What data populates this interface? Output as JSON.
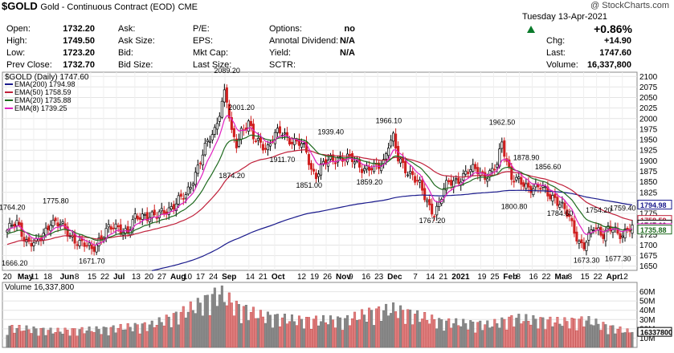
{
  "header": {
    "symbol": "$GOLD",
    "description": "Gold - Continuous Contract (EOD)",
    "exchange": "CME",
    "copyright": "@ StockCharts.com",
    "date": "Tuesday  13-Apr-2021",
    "pct_change": "+0.86%",
    "chg_label": "Chg:",
    "chg_value": "+14.90",
    "last_label": "Last:",
    "last_value": "1747.60",
    "volume_label": "Volume:",
    "volume_value": "16,337,800",
    "up_color": "#0a7a2a",
    "stats": [
      {
        "label": "Open:",
        "value": "1732.20"
      },
      {
        "label": "High:",
        "value": "1749.50"
      },
      {
        "label": "Low:",
        "value": "1723.20"
      },
      {
        "label": "Prev Close:",
        "value": "1732.70"
      }
    ],
    "stats2": [
      {
        "label": "Ask:",
        "value": ""
      },
      {
        "label": "Ask Size:",
        "value": ""
      },
      {
        "label": "Bid:",
        "value": ""
      },
      {
        "label": "Bid Size:",
        "value": ""
      }
    ],
    "stats3": [
      {
        "label": "P/E:",
        "value": ""
      },
      {
        "label": "EPS:",
        "value": ""
      },
      {
        "label": "Mkt Cap:",
        "value": ""
      },
      {
        "label": "Last Size:",
        "value": ""
      }
    ],
    "stats4": [
      {
        "label": "Options:",
        "value": "no"
      },
      {
        "label": "Annotal Dividend:",
        "value": "N/A"
      },
      {
        "label": "Yield:",
        "value": "N/A"
      },
      {
        "label": "SCTR:",
        "value": ""
      }
    ]
  },
  "chart_data": {
    "type": "candlestick",
    "legend_title": "$GOLD (Daily) 1747.60",
    "legend": [
      {
        "name": "EMA(200) 1794.98",
        "color": "#1a1a8c"
      },
      {
        "name": "EMA(50) 1758.59",
        "color": "#c0203a"
      },
      {
        "name": "EMA(20) 1735.88",
        "color": "#1e6a1e"
      },
      {
        "name": "EMA(8) 1739.25",
        "color": "#e020c0"
      }
    ],
    "ylim": [
      1640,
      2110
    ],
    "yticks": [
      1650,
      1675,
      1700,
      1725,
      1750,
      1775,
      1800,
      1825,
      1850,
      1875,
      1900,
      1925,
      1950,
      1975,
      2000,
      2025,
      2050,
      2075,
      2100
    ],
    "xticks": [
      "20",
      "May",
      "11",
      "18",
      "Jun",
      "8",
      "15",
      "22",
      "Jul",
      "13",
      "20",
      "27",
      "Aug",
      "10",
      "17",
      "24",
      "Sep",
      "14",
      "21",
      "Oct",
      "12",
      "19",
      "26",
      "Nov",
      "9",
      "16",
      "23",
      "Dec",
      "7",
      "14",
      "21",
      "2021",
      "19",
      "25",
      "Feb",
      "8",
      "16",
      "22",
      "Mar",
      "8",
      "15",
      "22",
      "Apr",
      "12"
    ],
    "annotations": [
      {
        "label": "1764.20",
        "value": 1764.2
      },
      {
        "label": "1775.80",
        "value": 1775.8
      },
      {
        "label": "1666.20",
        "value": 1666.2
      },
      {
        "label": "1671.70",
        "value": 1671.7
      },
      {
        "label": "2089.20",
        "value": 2089.2
      },
      {
        "label": "2001.20",
        "value": 2001.2
      },
      {
        "label": "1874.20",
        "value": 1874.2
      },
      {
        "label": "1911.70",
        "value": 1911.7
      },
      {
        "label": "1851.00",
        "value": 1851.0
      },
      {
        "label": "1939.40",
        "value": 1939.4
      },
      {
        "label": "1859.20",
        "value": 1859.2
      },
      {
        "label": "1966.10",
        "value": 1966.1
      },
      {
        "label": "1767.20",
        "value": 1767.2
      },
      {
        "label": "1962.50",
        "value": 1962.5
      },
      {
        "label": "1800.80",
        "value": 1800.8
      },
      {
        "label": "1878.90",
        "value": 1878.9
      },
      {
        "label": "1856.60",
        "value": 1856.6
      },
      {
        "label": "1784.60",
        "value": 1784.6
      },
      {
        "label": "1754.20",
        "value": 1754.2
      },
      {
        "label": "1759.40",
        "value": 1759.4
      },
      {
        "label": "1673.30",
        "value": 1673.3
      },
      {
        "label": "1677.30",
        "value": 1677.3
      }
    ],
    "right_tags": [
      {
        "label": "1794.98",
        "value": 1794.98,
        "color": "#1a1a8c"
      },
      {
        "label": "1758.59",
        "value": 1758.59,
        "color": "#c0203a"
      },
      {
        "label": "1747.60",
        "value": 1747.6,
        "color": "#000000"
      },
      {
        "label": "1739.25",
        "value": 1739.25,
        "color": "#e020c0"
      },
      {
        "label": "1735.88",
        "value": 1735.88,
        "color": "#1e6a1e"
      }
    ],
    "close_anchors": [
      [
        0,
        1735
      ],
      [
        4,
        1750
      ],
      [
        8,
        1712
      ],
      [
        12,
        1700
      ],
      [
        15,
        1725
      ],
      [
        18,
        1760
      ],
      [
        22,
        1745
      ],
      [
        27,
        1720
      ],
      [
        31,
        1700
      ],
      [
        35,
        1690
      ],
      [
        38,
        1715
      ],
      [
        42,
        1735
      ],
      [
        46,
        1745
      ],
      [
        50,
        1730
      ],
      [
        53,
        1760
      ],
      [
        57,
        1775
      ],
      [
        62,
        1765
      ],
      [
        66,
        1785
      ],
      [
        70,
        1800
      ],
      [
        74,
        1815
      ],
      [
        77,
        1860
      ],
      [
        80,
        1900
      ],
      [
        83,
        1940
      ],
      [
        86,
        1975
      ],
      [
        88,
        2020
      ],
      [
        90,
        2060
      ],
      [
        91,
        2040
      ],
      [
        93,
        1960
      ],
      [
        95,
        1940
      ],
      [
        97,
        1975
      ],
      [
        100,
        1990
      ],
      [
        102,
        1950
      ],
      [
        105,
        1940
      ],
      [
        108,
        1935
      ],
      [
        111,
        1960
      ],
      [
        114,
        1965
      ],
      [
        118,
        1950
      ],
      [
        121,
        1940
      ],
      [
        124,
        1920
      ],
      [
        126,
        1880
      ],
      [
        128,
        1870
      ],
      [
        131,
        1890
      ],
      [
        134,
        1900
      ],
      [
        137,
        1910
      ],
      [
        140,
        1905
      ],
      [
        143,
        1900
      ],
      [
        146,
        1890
      ],
      [
        150,
        1880
      ],
      [
        153,
        1880
      ],
      [
        156,
        1900
      ],
      [
        158,
        1945
      ],
      [
        160,
        1955
      ],
      [
        162,
        1900
      ],
      [
        165,
        1880
      ],
      [
        168,
        1870
      ],
      [
        171,
        1840
      ],
      [
        173,
        1810
      ],
      [
        175,
        1790
      ],
      [
        177,
        1780
      ],
      [
        179,
        1800
      ],
      [
        181,
        1830
      ],
      [
        183,
        1845
      ],
      [
        186,
        1855
      ],
      [
        189,
        1865
      ],
      [
        192,
        1875
      ],
      [
        195,
        1880
      ],
      [
        198,
        1865
      ],
      [
        201,
        1870
      ],
      [
        203,
        1890
      ],
      [
        205,
        1945
      ],
      [
        207,
        1905
      ],
      [
        209,
        1860
      ],
      [
        211,
        1850
      ],
      [
        213,
        1845
      ],
      [
        215,
        1840
      ],
      [
        218,
        1840
      ],
      [
        221,
        1835
      ],
      [
        224,
        1820
      ],
      [
        227,
        1815
      ],
      [
        229,
        1800
      ],
      [
        231,
        1780
      ],
      [
        233,
        1760
      ],
      [
        235,
        1735
      ],
      [
        237,
        1710
      ],
      [
        239,
        1700
      ],
      [
        241,
        1715
      ],
      [
        243,
        1740
      ],
      [
        245,
        1735
      ],
      [
        247,
        1730
      ],
      [
        249,
        1740
      ],
      [
        251,
        1735
      ],
      [
        253,
        1720
      ],
      [
        255,
        1725
      ],
      [
        257,
        1745
      ],
      [
        259,
        1747.6
      ]
    ],
    "ema_last": {
      "ema200": 1794.98,
      "ema50": 1758.59,
      "ema20": 1735.88,
      "ema8": 1739.25
    },
    "volume": {
      "label": "Volume 16,337,800",
      "ylim": [
        0,
        70
      ],
      "yticks": [
        {
          "label": "10M",
          "value": 10
        },
        {
          "label": "20M",
          "value": 20
        },
        {
          "label": "30M",
          "value": 30
        },
        {
          "label": "40M",
          "value": 40
        },
        {
          "label": "50M",
          "value": 50
        },
        {
          "label": "60M",
          "value": 60
        }
      ],
      "last_tag": "16337800",
      "bar_scale_by_period": [
        [
          0,
          22
        ],
        [
          20,
          18
        ],
        [
          40,
          20
        ],
        [
          60,
          25
        ],
        [
          70,
          35
        ],
        [
          80,
          48
        ],
        [
          88,
          60
        ],
        [
          95,
          45
        ],
        [
          105,
          35
        ],
        [
          120,
          30
        ],
        [
          140,
          30
        ],
        [
          150,
          38
        ],
        [
          160,
          42
        ],
        [
          170,
          35
        ],
        [
          180,
          28
        ],
        [
          200,
          25
        ],
        [
          210,
          32
        ],
        [
          220,
          30
        ],
        [
          230,
          28
        ],
        [
          240,
          30
        ],
        [
          250,
          22
        ],
        [
          259,
          16.3
        ]
      ]
    }
  }
}
